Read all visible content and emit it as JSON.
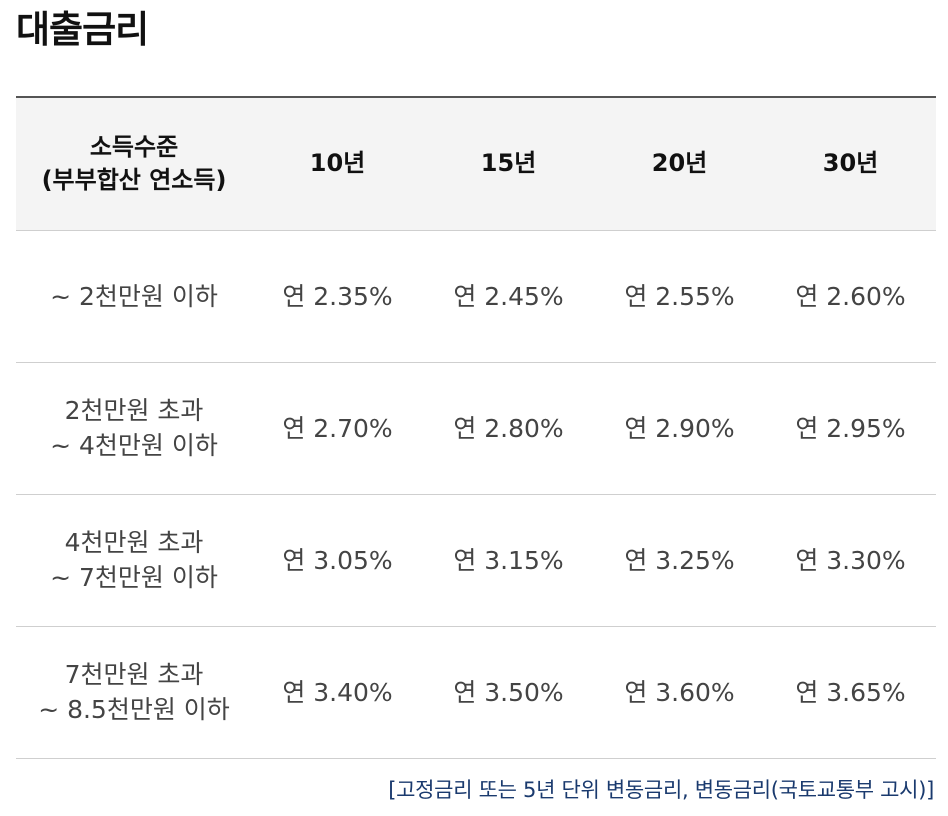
{
  "title": "대출금리",
  "table": {
    "header": {
      "income_line1": "소득수준",
      "income_line2": "(부부합산 연소득)",
      "terms": [
        "10년",
        "15년",
        "20년",
        "30년"
      ]
    },
    "rows": [
      {
        "income_line1": "~ 2천만원 이하",
        "income_line2": "",
        "rates": [
          "연 2.35%",
          "연 2.45%",
          "연 2.55%",
          "연 2.60%"
        ]
      },
      {
        "income_line1": "2천만원 초과",
        "income_line2": "~ 4천만원 이하",
        "rates": [
          "연 2.70%",
          "연 2.80%",
          "연 2.90%",
          "연 2.95%"
        ]
      },
      {
        "income_line1": "4천만원 초과",
        "income_line2": "~ 7천만원 이하",
        "rates": [
          "연 3.05%",
          "연 3.15%",
          "연 3.25%",
          "연 3.30%"
        ]
      },
      {
        "income_line1": "7천만원 초과",
        "income_line2": "~ 8.5천만원 이하",
        "rates": [
          "연 3.40%",
          "연 3.50%",
          "연 3.60%",
          "연 3.65%"
        ]
      }
    ]
  },
  "footnote": "[고정금리 또는 5년 단위 변동금리, 변동금리(국토교통부 고시)]"
}
